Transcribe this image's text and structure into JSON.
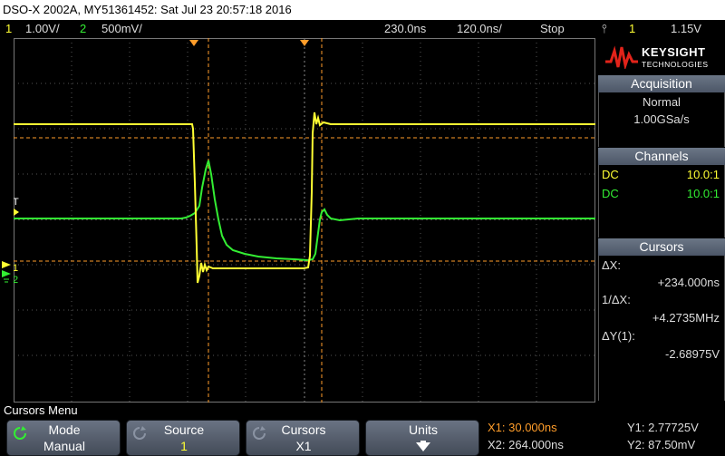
{
  "title_bar": "DSO-X 2002A, MY51361452: Sat Jul 23 20:57:18 2016",
  "status": {
    "ch1_num": "1",
    "ch1_scale": "1.00V/",
    "ch2_num": "2",
    "ch2_scale": "500mV/",
    "delay": "230.0ns",
    "timebase": "120.0ns/",
    "run_state": "Stop",
    "trigger_symbol": "⫯",
    "trigger_ch": "1",
    "trigger_level": "1.15V"
  },
  "brand": {
    "name": "KEYSIGHT",
    "sub": "TECHNOLOGIES"
  },
  "acquisition": {
    "header": "Acquisition",
    "mode": "Normal",
    "rate": "1.00GSa/s"
  },
  "channels": {
    "header": "Channels",
    "rows": [
      {
        "coupling": "DC",
        "probe": "10.0:1"
      },
      {
        "coupling": "DC",
        "probe": "10.0:1"
      }
    ]
  },
  "cursors_panel": {
    "header": "Cursors",
    "dx_label": "ΔX:",
    "dx_value": "+234.000ns",
    "inv_dx_label": "1/ΔX:",
    "inv_dx_value": "+4.2735MHz",
    "dy_label": "ΔY(1):",
    "dy_value": "-2.68975V"
  },
  "markers": {
    "trigger_T": "T",
    "ch1_marker": "1",
    "ch2_marker": "2"
  },
  "softkeys": {
    "menu_title": "Cursors Menu",
    "mode": {
      "label": "Mode",
      "value": "Manual"
    },
    "source": {
      "label": "Source",
      "value": "1"
    },
    "cursors": {
      "label": "Cursors",
      "value": "X1"
    },
    "units": {
      "label": "Units"
    }
  },
  "readouts": {
    "x1": "X1: 30.000ns",
    "x2": "X2: 264.000ns",
    "y1": "Y1: 2.77725V",
    "y2": "Y2: 87.50mV"
  },
  "colors": {
    "ch1": "#ffff33",
    "ch2": "#33ee33",
    "cursor": "#ff9d2a",
    "panel_header": "#5b6677"
  }
}
